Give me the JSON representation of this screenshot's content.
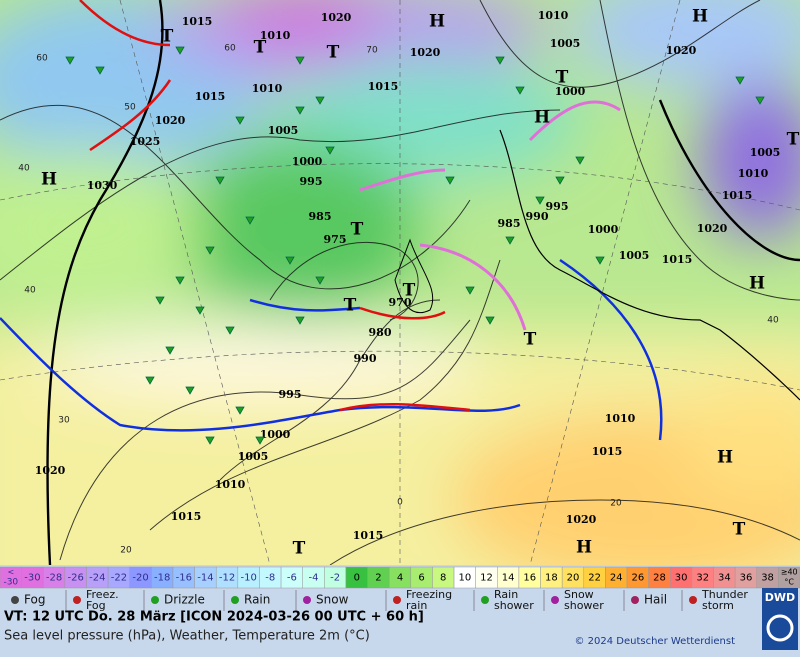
{
  "map": {
    "isobar_labels": [
      "1015",
      "1020",
      "1010",
      "1010",
      "1020",
      "1005",
      "1020",
      "1015",
      "1010",
      "1015",
      "1000",
      "1020",
      "1025",
      "1005",
      "1000",
      "995",
      "1030",
      "985",
      "975",
      "990",
      "995",
      "985",
      "1000",
      "1005",
      "1015",
      "1020",
      "1010",
      "1015",
      "1005",
      "970",
      "980",
      "990",
      "995",
      "1000",
      "1005",
      "1010",
      "1015",
      "1020",
      "1015",
      "1020",
      "1010",
      "1015"
    ],
    "temperature_labels": [
      "60",
      "50",
      "40",
      "40",
      "30",
      "20",
      "60",
      "70",
      "40",
      "20",
      "0"
    ],
    "high_labels": [
      "H",
      "H",
      "H",
      "H",
      "H",
      "H",
      "H"
    ],
    "low_labels": [
      "T",
      "T",
      "T",
      "T",
      "T",
      "T",
      "T",
      "T",
      "T",
      "T",
      "T"
    ]
  },
  "scale": {
    "low_label": [
      "<",
      "-30"
    ],
    "values": [
      -30,
      -28,
      -26,
      -24,
      -22,
      -20,
      -18,
      -16,
      -14,
      -12,
      -10,
      -8,
      -6,
      -4,
      -2,
      0,
      2,
      4,
      6,
      8,
      10,
      12,
      14,
      16,
      18,
      20,
      22,
      24,
      26,
      28,
      30,
      32,
      34,
      36,
      38
    ],
    "colors": [
      "#e070e0",
      "#d880e8",
      "#c890f0",
      "#b8a0f8",
      "#a8a8ff",
      "#8c98ff",
      "#88b0ff",
      "#98c0ff",
      "#a8d0ff",
      "#b0e0ff",
      "#b8f0ff",
      "#c4f8ff",
      "#ccfffa",
      "#c8fff0",
      "#c0ffe0",
      "#38c040",
      "#60d050",
      "#88e060",
      "#a8ec70",
      "#c8f880",
      "#ffffff",
      "#fffff0",
      "#ffffd0",
      "#ffffa0",
      "#fff080",
      "#ffe060",
      "#ffd040",
      "#ffb030",
      "#ff9830",
      "#ff8040",
      "#ff7070",
      "#ff8080",
      "#f09090",
      "#e0a0a0",
      "#c0a0a0"
    ],
    "high_label": [
      "≥40",
      "°C"
    ]
  },
  "weather_legend": [
    "Fog",
    "Freez. Fog",
    "Drizzle",
    "Rain",
    "Snow",
    "Freezing rain",
    "Rain shower",
    "Snow shower",
    "Hail",
    "Thunder storm"
  ],
  "footer": {
    "valid_time": "VT: 12 UTC Do.  28 März [ICON 2024-03-26  00 UTC + 60 h]",
    "description": "Sea level pressure (hPa), Weather, Temperature 2m (°C)",
    "copyright": "© 2024 Deutscher Wetterdienst",
    "logo": "DWD"
  }
}
